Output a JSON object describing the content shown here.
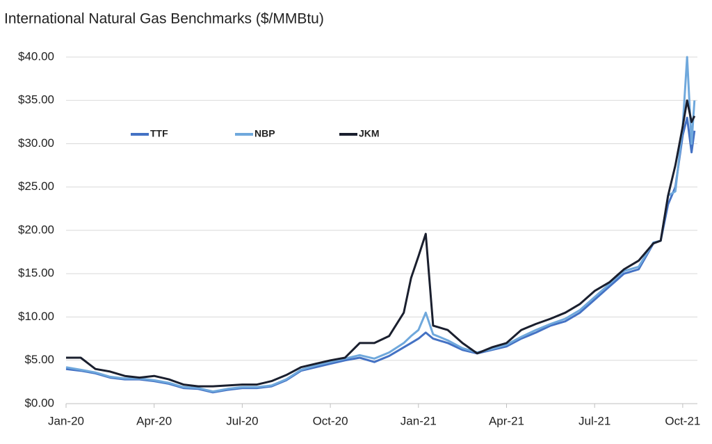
{
  "chart_data": {
    "type": "line",
    "title": "International Natural Gas Benchmarks ($/MMBtu)",
    "x": [
      0,
      0.5,
      1,
      1.5,
      2,
      2.5,
      3,
      3.5,
      4,
      4.5,
      5,
      5.5,
      6,
      6.5,
      7,
      7.5,
      8,
      8.5,
      9,
      9.5,
      10,
      10.5,
      11,
      11.5,
      11.75,
      12,
      12.25,
      12.5,
      13,
      13.5,
      14,
      14.5,
      15,
      15.5,
      16,
      16.5,
      17,
      17.5,
      18,
      18.5,
      19,
      19.5,
      20,
      20.25,
      20.5,
      20.75,
      21,
      21.15,
      21.3,
      21.4
    ],
    "series": [
      {
        "name": "TTF",
        "color": "#4472c4",
        "values": [
          4.0,
          3.8,
          3.5,
          3.0,
          2.8,
          2.8,
          2.6,
          2.3,
          1.8,
          1.7,
          1.3,
          1.6,
          1.8,
          1.8,
          2.0,
          2.7,
          3.8,
          4.2,
          4.6,
          5.0,
          5.3,
          4.8,
          5.5,
          6.5,
          7.0,
          7.5,
          8.2,
          7.5,
          7.0,
          6.2,
          5.8,
          6.2,
          6.6,
          7.5,
          8.2,
          9.0,
          9.5,
          10.5,
          12.0,
          13.5,
          15.0,
          15.5,
          18.5,
          18.8,
          23.0,
          25.0,
          31.0,
          33.0,
          29.0,
          31.5
        ]
      },
      {
        "name": "NBP",
        "color": "#6fa8dc",
        "values": [
          4.2,
          3.9,
          3.6,
          3.1,
          2.9,
          2.9,
          2.7,
          2.4,
          1.9,
          1.8,
          1.4,
          1.7,
          1.9,
          1.9,
          2.1,
          2.8,
          3.9,
          4.4,
          4.8,
          5.2,
          5.6,
          5.2,
          5.9,
          7.0,
          7.8,
          8.5,
          10.5,
          8.0,
          7.3,
          6.4,
          5.9,
          6.3,
          6.8,
          7.7,
          8.5,
          9.2,
          9.8,
          10.8,
          12.3,
          13.8,
          15.3,
          15.8,
          18.6,
          18.8,
          24.0,
          24.5,
          32.0,
          40.0,
          30.0,
          35.0
        ]
      },
      {
        "name": "JKM",
        "color": "#1a1f2e",
        "values": [
          5.3,
          5.3,
          4.0,
          3.7,
          3.2,
          3.0,
          3.2,
          2.8,
          2.2,
          2.0,
          2.0,
          2.1,
          2.2,
          2.2,
          2.6,
          3.3,
          4.2,
          4.6,
          5.0,
          5.3,
          7.0,
          7.0,
          7.8,
          10.5,
          14.5,
          17.0,
          19.6,
          9.0,
          8.5,
          7.0,
          5.8,
          6.5,
          7.0,
          8.5,
          9.2,
          9.8,
          10.5,
          11.5,
          13.0,
          14.0,
          15.5,
          16.5,
          18.5,
          18.8,
          24.0,
          27.5,
          32.0,
          35.0,
          32.5,
          33.2
        ]
      }
    ],
    "xlim": [
      0,
      21.5
    ],
    "xticks": [
      {
        "value": 0,
        "label": "Jan-20"
      },
      {
        "value": 3,
        "label": "Apr-20"
      },
      {
        "value": 6,
        "label": "Jul-20"
      },
      {
        "value": 9,
        "label": "Oct-20"
      },
      {
        "value": 12,
        "label": "Jan-21"
      },
      {
        "value": 15,
        "label": "Apr-21"
      },
      {
        "value": 18,
        "label": "Jul-21"
      },
      {
        "value": 21,
        "label": "Oct-21"
      }
    ],
    "ylim": [
      0,
      40
    ],
    "yticks": [
      {
        "value": 0,
        "label": "$0.00"
      },
      {
        "value": 5,
        "label": "$5.00"
      },
      {
        "value": 10,
        "label": "$10.00"
      },
      {
        "value": 15,
        "label": "$15.00"
      },
      {
        "value": 20,
        "label": "$20.00"
      },
      {
        "value": 25,
        "label": "$25.00"
      },
      {
        "value": 30,
        "label": "$30.00"
      },
      {
        "value": 35,
        "label": "$35.00"
      },
      {
        "value": 40,
        "label": "$40.00"
      }
    ],
    "grid": true,
    "legend": "upper left"
  }
}
